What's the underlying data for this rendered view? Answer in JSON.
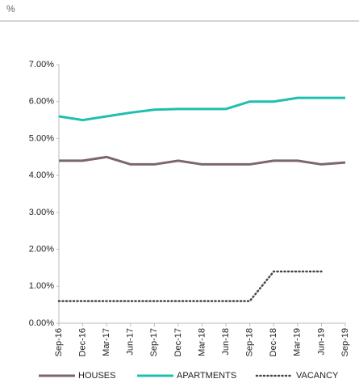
{
  "chart_data": {
    "type": "line",
    "unit_label": "%",
    "categories": [
      "Sep-16",
      "Dec-16",
      "Mar-17",
      "Jun-17",
      "Sep-17",
      "Dec-17",
      "Mar-18",
      "Jun-18",
      "Sep-18",
      "Dec-18",
      "Mar-19",
      "Jun-19",
      "Sep-19"
    ],
    "series": [
      {
        "name": "HOUSES",
        "color": "#7b6670",
        "style": "solid",
        "values": [
          4.4,
          4.4,
          4.5,
          4.3,
          4.3,
          4.4,
          4.3,
          4.3,
          4.3,
          4.4,
          4.4,
          4.3,
          4.35
        ]
      },
      {
        "name": "APARTMENTS",
        "color": "#1fbfb0",
        "style": "solid",
        "values": [
          5.6,
          5.5,
          5.6,
          5.7,
          5.78,
          5.8,
          5.8,
          5.8,
          6.0,
          6.0,
          6.1,
          6.1,
          6.1
        ]
      },
      {
        "name": "VACANCY",
        "color": "#444444",
        "style": "dotted",
        "values": [
          0.6,
          0.6,
          0.6,
          0.6,
          0.6,
          0.6,
          0.6,
          0.6,
          0.6,
          1.4,
          1.4,
          1.4,
          null
        ]
      }
    ],
    "ylim": [
      0,
      7
    ],
    "yticks": [
      {
        "value": 0,
        "label": "0.00%"
      },
      {
        "value": 1,
        "label": "1.00%"
      },
      {
        "value": 2,
        "label": "2.00%"
      },
      {
        "value": 3,
        "label": "3.00%"
      },
      {
        "value": 4,
        "label": "4.00%"
      },
      {
        "value": 5,
        "label": "5.00%"
      },
      {
        "value": 6,
        "label": "6.00%"
      },
      {
        "value": 7,
        "label": "7.00%"
      }
    ],
    "grid": false
  }
}
